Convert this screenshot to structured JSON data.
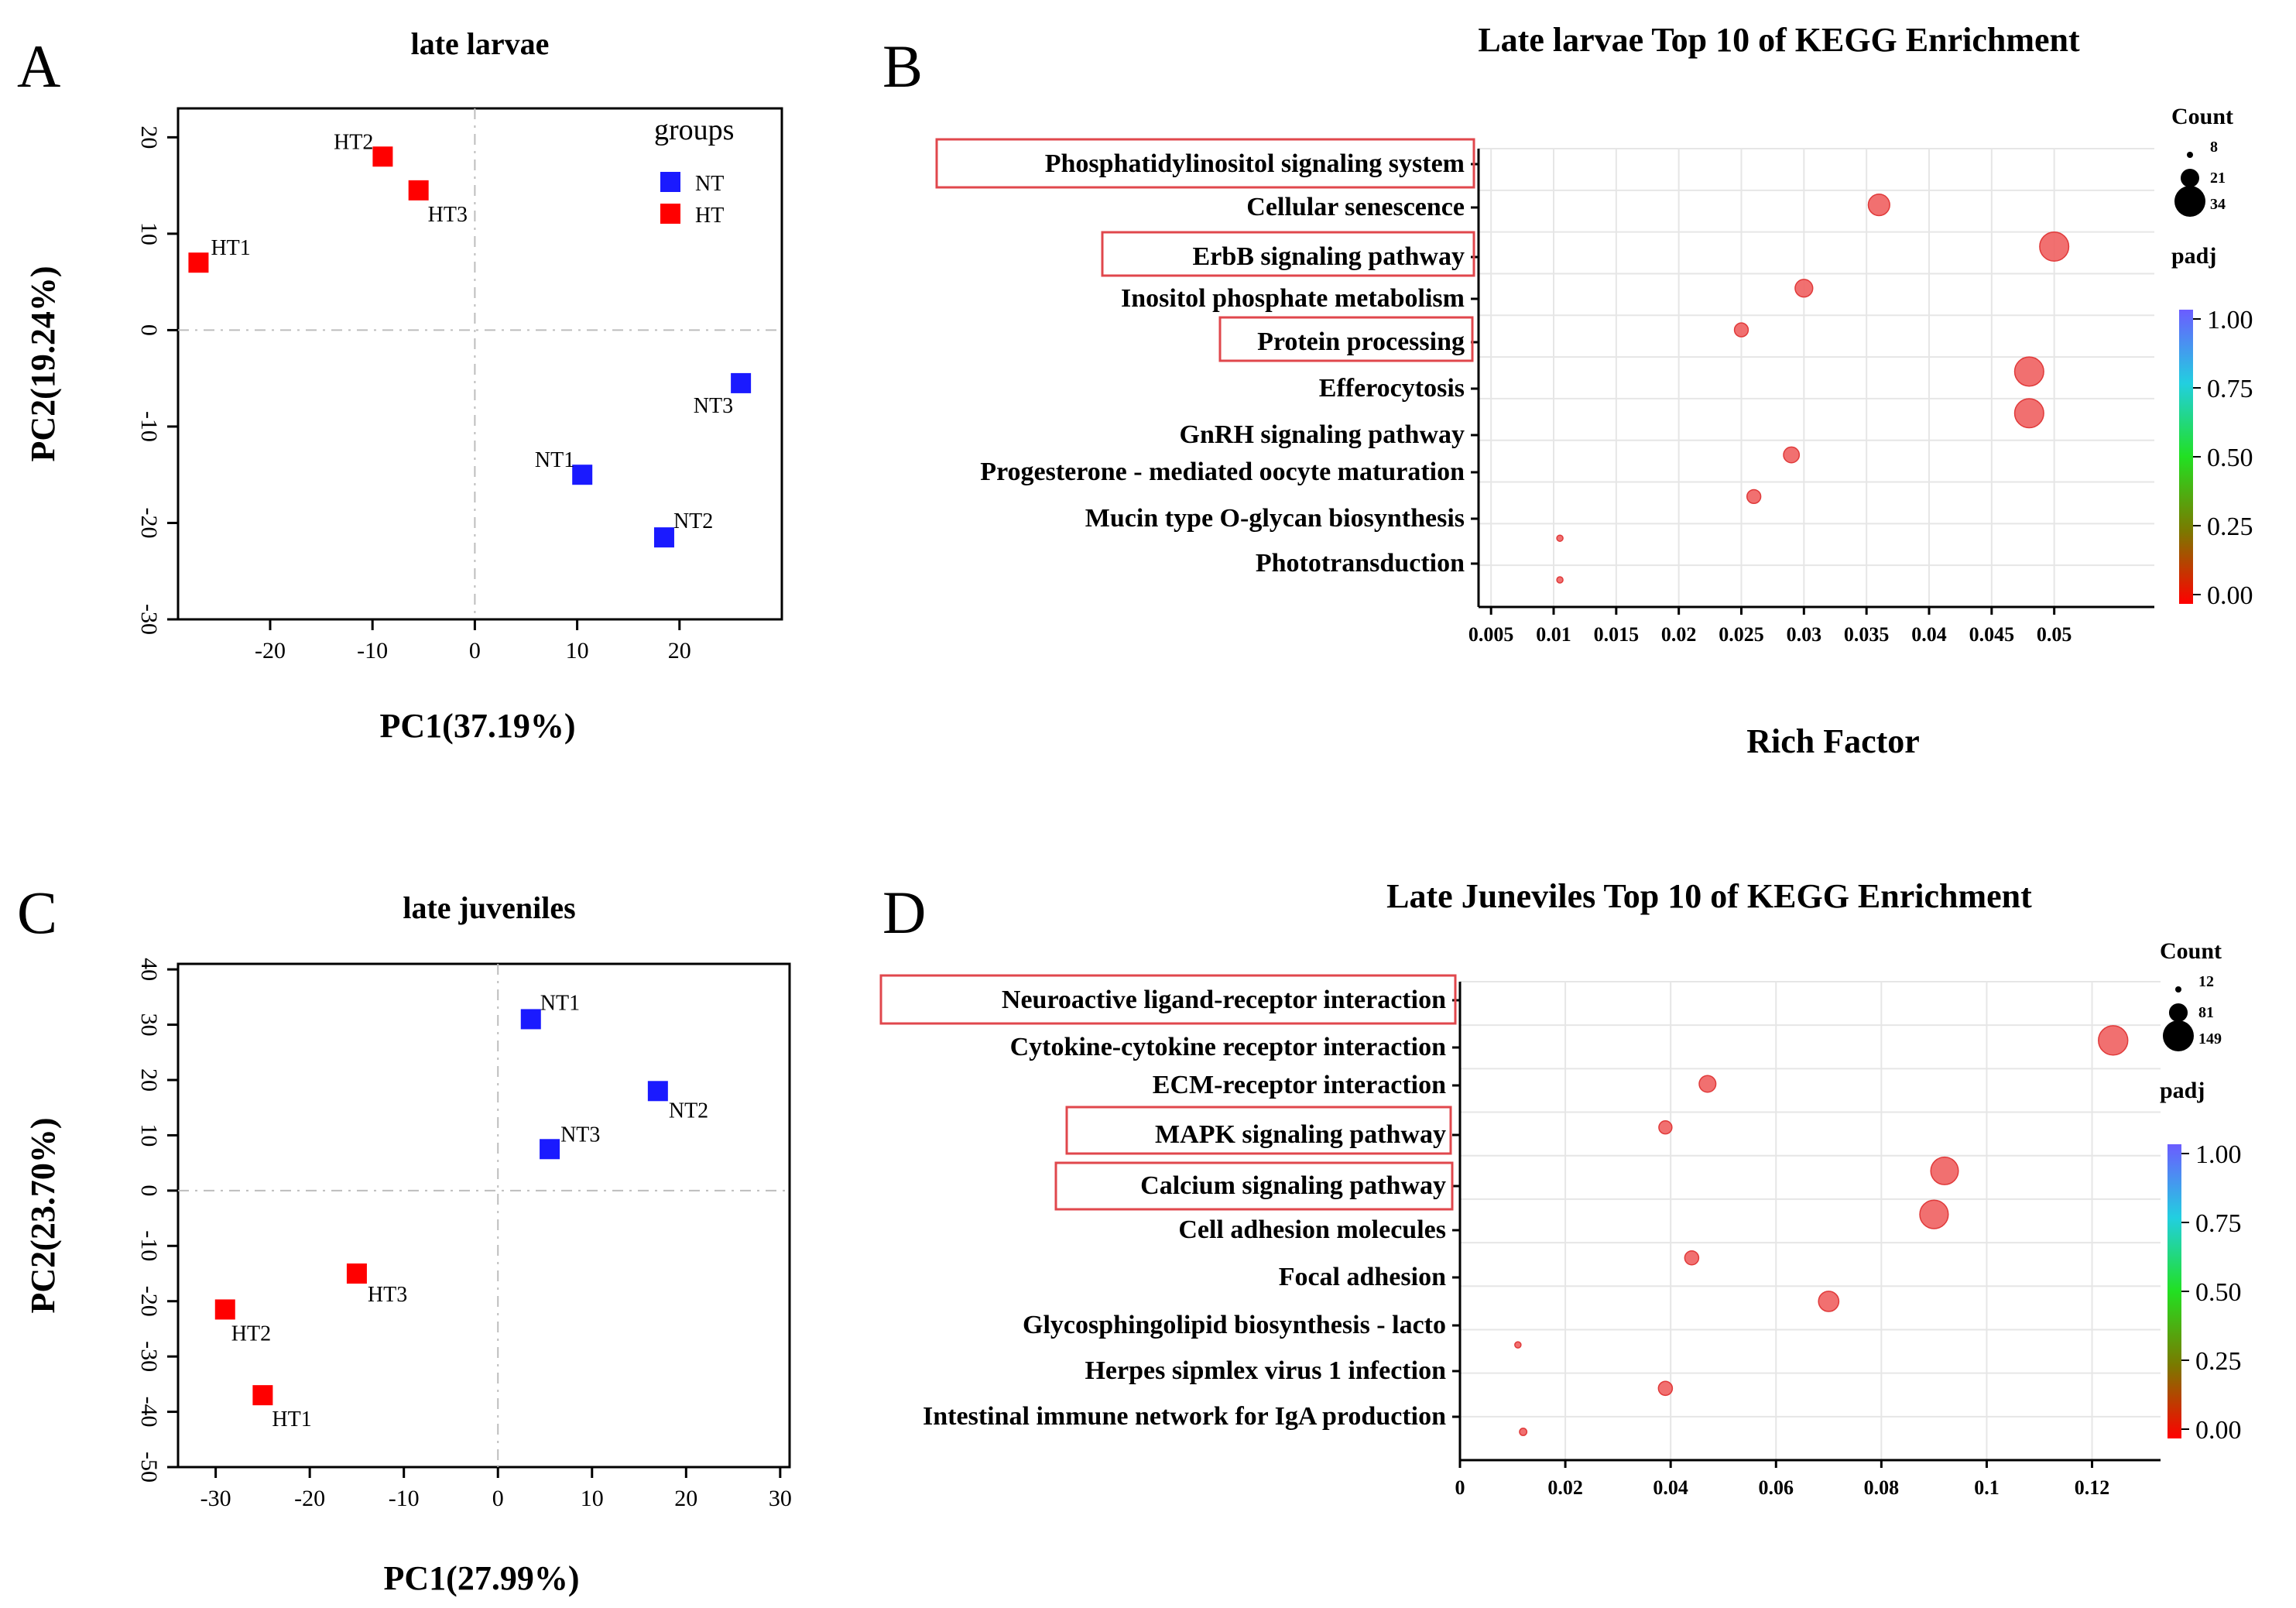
{
  "colors": {
    "NT": "#1a1aff",
    "HT": "#ff0000",
    "bubble": "#f06060",
    "bubble_edge": "#e03a3a",
    "highlight": "#e0474c"
  },
  "chart_data": [
    {
      "panel_letter": "A",
      "type": "scatter",
      "title": "late larvae",
      "xlabel": "PC1(37.19%)",
      "ylabel": "PC2(19.24%)",
      "xlim": [
        -29,
        30
      ],
      "ylim": [
        -30,
        23
      ],
      "xticks": [
        "-20",
        "-10",
        "0",
        "10",
        "20"
      ],
      "xtick_values": [
        -20,
        -10,
        0,
        10,
        20
      ],
      "yticks": [
        "20",
        "10",
        "0",
        "-10",
        "-20",
        "-30"
      ],
      "ytick_values": [
        20,
        10,
        0,
        -10,
        -20,
        -30
      ],
      "legend": {
        "title": "groups",
        "items": [
          {
            "name": "NT",
            "color": "#1a1aff"
          },
          {
            "name": "HT",
            "color": "#ff0000"
          }
        ]
      },
      "points": [
        {
          "label": "HT1",
          "group": "HT",
          "x": -27,
          "y": 7
        },
        {
          "label": "HT2",
          "group": "HT",
          "x": -9,
          "y": 18
        },
        {
          "label": "HT3",
          "group": "HT",
          "x": -5.5,
          "y": 14.5
        },
        {
          "label": "NT1",
          "group": "NT",
          "x": 10.5,
          "y": -15
        },
        {
          "label": "NT2",
          "group": "NT",
          "x": 18.5,
          "y": -21.5
        },
        {
          "label": "NT3",
          "group": "NT",
          "x": 26,
          "y": -5.5
        }
      ]
    },
    {
      "panel_letter": "B",
      "type": "scatter",
      "title": "Late larvae Top 10 of KEGG Enrichment",
      "xlabel": "Rich Factor",
      "xlim": [
        0.004,
        0.058
      ],
      "xticks": [
        "0.005",
        "0.01",
        "0.015",
        "0.02",
        "0.025",
        "0.03",
        "0.035",
        "0.04",
        "0.045",
        "0.05"
      ],
      "xtick_values": [
        0.005,
        0.01,
        0.015,
        0.02,
        0.025,
        0.03,
        0.035,
        0.04,
        0.045,
        0.05
      ],
      "categories": [
        "Phosphatidylinositol signaling system",
        "Cellular senescence",
        "ErbB signaling pathway",
        "Inositol phosphate metabolism",
        "Protein processing",
        "Efferocytosis",
        "GnRH signaling pathway",
        "Progesterone - mediated oocyte maturation",
        "Mucin type O-glycan biosynthesis",
        "Phototransduction"
      ],
      "highlighted": [
        "Phosphatidylinositol signaling system",
        "ErbB signaling pathway",
        "Protein processing"
      ],
      "points": [
        {
          "rich_factor": 0.036,
          "count": 24,
          "padj": 0.0
        },
        {
          "rich_factor": 0.05,
          "count": 32,
          "padj": 0.0
        },
        {
          "rich_factor": 0.03,
          "count": 20,
          "padj": 0.0
        },
        {
          "rich_factor": 0.025,
          "count": 16,
          "padj": 0.0
        },
        {
          "rich_factor": 0.048,
          "count": 32,
          "padj": 0.0
        },
        {
          "rich_factor": 0.048,
          "count": 32,
          "padj": 0.0
        },
        {
          "rich_factor": 0.029,
          "count": 18,
          "padj": 0.0
        },
        {
          "rich_factor": 0.026,
          "count": 16,
          "padj": 0.0
        },
        {
          "rich_factor": 0.0105,
          "count": 8,
          "padj": 0.0
        },
        {
          "rich_factor": 0.0105,
          "count": 8,
          "padj": 0.0
        }
      ],
      "size_legend": {
        "title": "Count",
        "values": [
          "8",
          "21",
          "34"
        ],
        "numeric": [
          8,
          21,
          34
        ]
      },
      "color_legend": {
        "title": "padj",
        "ticks": [
          "1.00",
          "0.75",
          "0.50",
          "0.25",
          "0.00"
        ]
      }
    },
    {
      "panel_letter": "C",
      "type": "scatter",
      "title": "late juveniles",
      "xlabel": "PC1(27.99%)",
      "ylabel": "PC2(23.70%)",
      "xlim": [
        -34,
        31
      ],
      "ylim": [
        -50,
        41
      ],
      "xticks": [
        "-30",
        "-20",
        "-10",
        "0",
        "10",
        "20",
        "30"
      ],
      "xtick_values": [
        -30,
        -20,
        -10,
        0,
        10,
        20,
        30
      ],
      "yticks": [
        "40",
        "30",
        "20",
        "10",
        "0",
        "-10",
        "-20",
        "-30",
        "-40",
        "-50"
      ],
      "ytick_values": [
        40,
        30,
        20,
        10,
        0,
        -10,
        -20,
        -30,
        -40,
        -50
      ],
      "points": [
        {
          "label": "NT1",
          "group": "NT",
          "x": 3.5,
          "y": 31
        },
        {
          "label": "NT2",
          "group": "NT",
          "x": 17,
          "y": 18
        },
        {
          "label": "NT3",
          "group": "NT",
          "x": 5.5,
          "y": 7.5
        },
        {
          "label": "HT1",
          "group": "HT",
          "x": -25,
          "y": -37
        },
        {
          "label": "HT2",
          "group": "HT",
          "x": -29,
          "y": -21.5
        },
        {
          "label": "HT3",
          "group": "HT",
          "x": -15,
          "y": -15
        }
      ]
    },
    {
      "panel_letter": "D",
      "type": "scatter",
      "title": "Late Juneviles Top 10 of KEGG Enrichment",
      "xlabel": "",
      "xlim": [
        0,
        0.133
      ],
      "xticks": [
        "0",
        "0.02",
        "0.04",
        "0.06",
        "0.08",
        "0.1",
        "0.12"
      ],
      "xtick_values": [
        0,
        0.02,
        0.04,
        0.06,
        0.08,
        0.1,
        0.12
      ],
      "categories": [
        "Neuroactive ligand-receptor interaction",
        "Cytokine-cytokine receptor interaction",
        "ECM-receptor interaction",
        "MAPK signaling pathway",
        "Calcium signaling pathway",
        "Cell adhesion molecules",
        "Focal adhesion",
        "Glycosphingolipid biosynthesis - lacto",
        "Herpes sipmlex virus 1 infection",
        "Intestinal immune network for IgA production"
      ],
      "highlighted": [
        "Neuroactive ligand-receptor interaction",
        "MAPK signaling pathway",
        "Calcium signaling pathway"
      ],
      "points": [
        {
          "rich_factor": 0.124,
          "count": 140,
          "padj": 0.0
        },
        {
          "rich_factor": 0.047,
          "count": 70,
          "padj": 0.0
        },
        {
          "rich_factor": 0.039,
          "count": 50,
          "padj": 0.0
        },
        {
          "rich_factor": 0.092,
          "count": 130,
          "padj": 0.0
        },
        {
          "rich_factor": 0.09,
          "count": 135,
          "padj": 0.0
        },
        {
          "rich_factor": 0.044,
          "count": 55,
          "padj": 0.0
        },
        {
          "rich_factor": 0.07,
          "count": 90,
          "padj": 0.0
        },
        {
          "rich_factor": 0.011,
          "count": 12,
          "padj": 0.0
        },
        {
          "rich_factor": 0.039,
          "count": 55,
          "padj": 0.0
        },
        {
          "rich_factor": 0.012,
          "count": 18,
          "padj": 0.0
        }
      ],
      "size_legend": {
        "title": "Count",
        "values": [
          "12",
          "81",
          "149"
        ],
        "numeric": [
          12,
          81,
          149
        ]
      },
      "color_legend": {
        "title": "padj",
        "ticks": [
          "1.00",
          "0.75",
          "0.50",
          "0.25",
          "0.00"
        ]
      }
    }
  ]
}
